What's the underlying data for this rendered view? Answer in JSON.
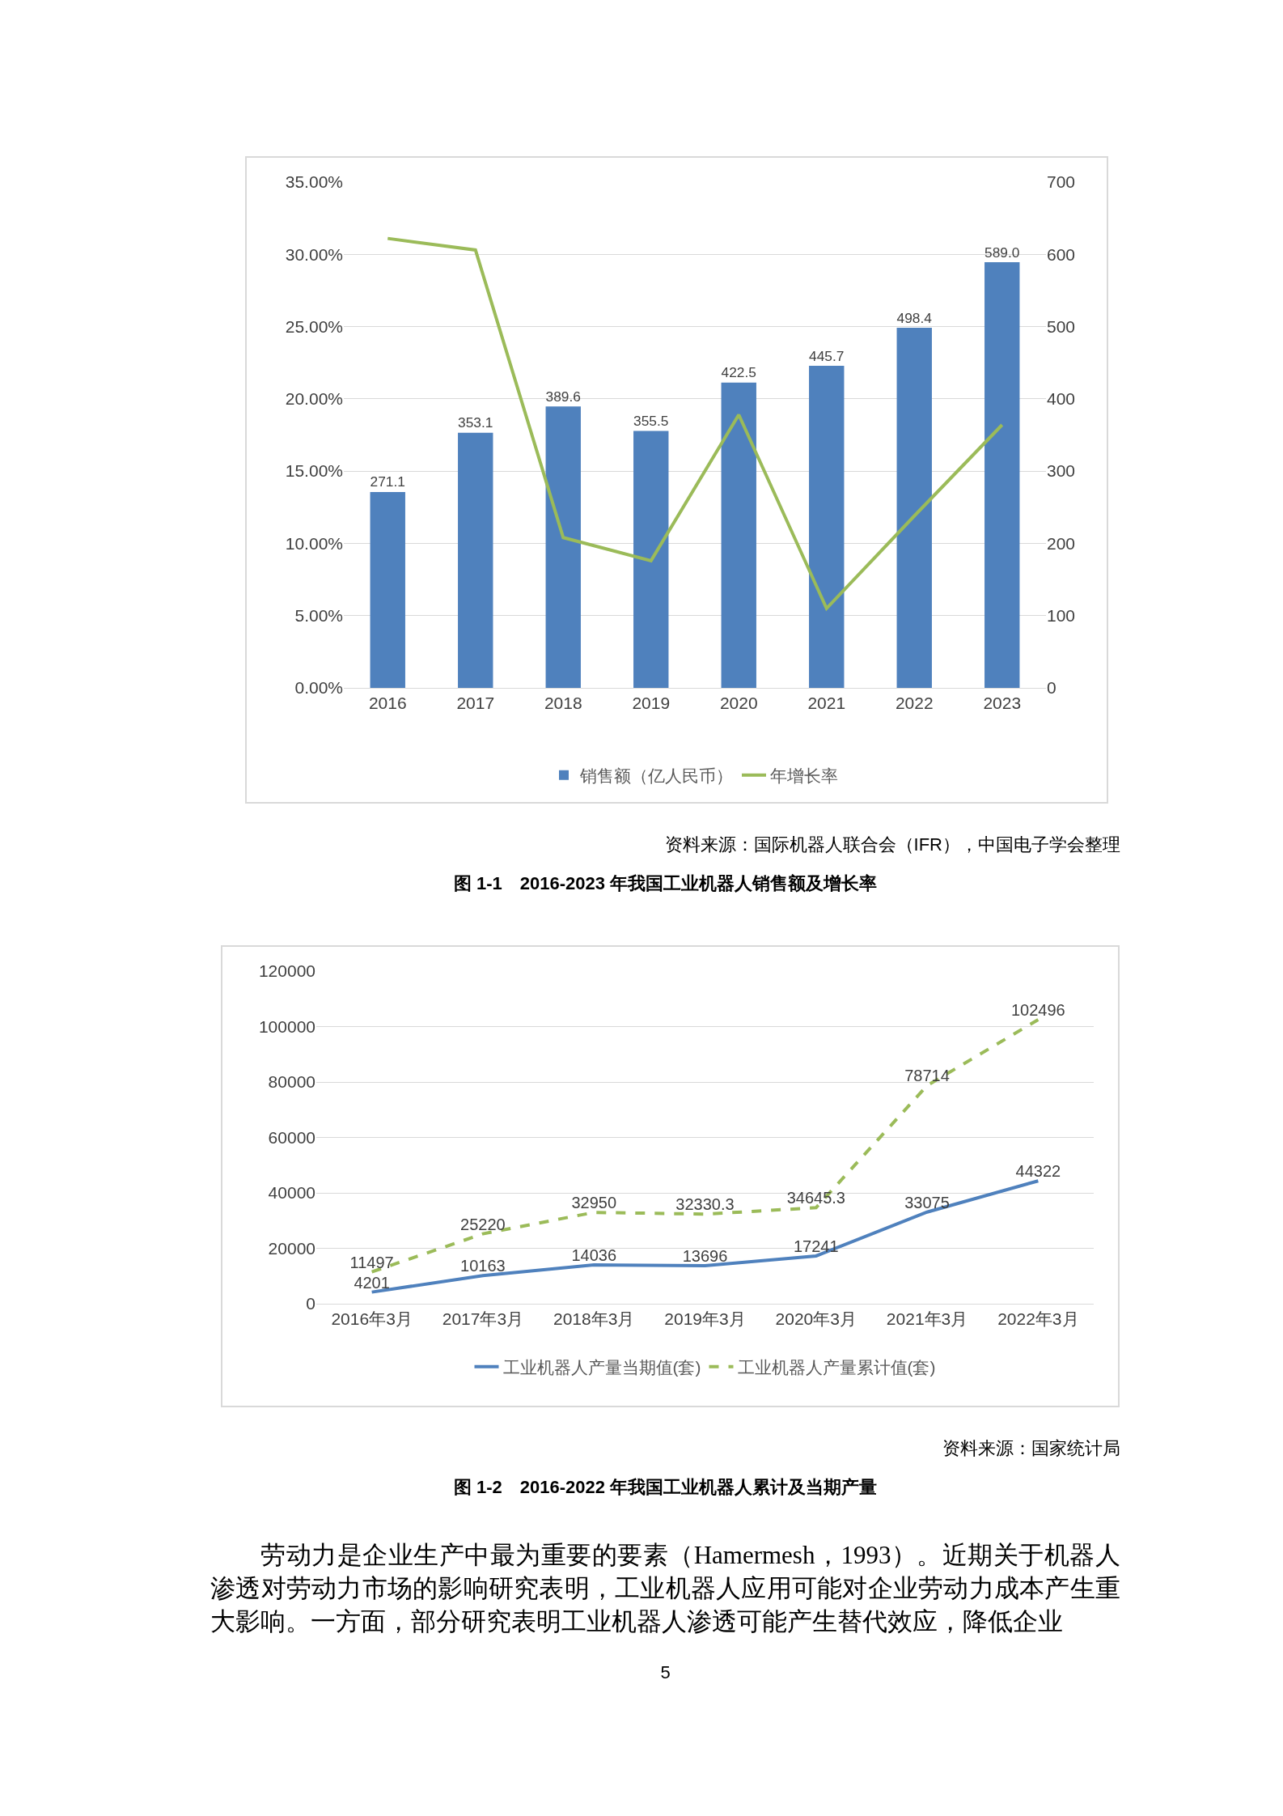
{
  "chart_data": [
    {
      "type": "bar",
      "title": "图 1-1　2016-2023 年我国工业机器人销售额及增长率",
      "categories": [
        "2016",
        "2017",
        "2018",
        "2019",
        "2020",
        "2021",
        "2022",
        "2023"
      ],
      "series": [
        {
          "name": "销售额（亿人民币）",
          "type": "bar",
          "axis": "y2",
          "color": "#4f81bd",
          "values": [
            271.1,
            353.1,
            389.6,
            355.5,
            422.5,
            445.7,
            498.4,
            589.0
          ],
          "value_labels": [
            "271.1",
            "353.1",
            "389.6",
            "355.5",
            "422.5",
            "445.7",
            "498.4",
            "589.0"
          ]
        },
        {
          "name": "年增长率",
          "type": "line",
          "color": "#9bbb59",
          "values": [
            31.1,
            30.3,
            10.4,
            8.8,
            18.9,
            5.5,
            11.9,
            18.2
          ]
        }
      ],
      "ylim": [
        0,
        35
      ],
      "yticks": [
        {
          "value": 0,
          "label": "0.00%"
        },
        {
          "value": 5,
          "label": "5.00%"
        },
        {
          "value": 10,
          "label": "10.00%"
        },
        {
          "value": 15,
          "label": "15.00%"
        },
        {
          "value": 20,
          "label": "20.00%"
        },
        {
          "value": 25,
          "label": "25.00%"
        },
        {
          "value": 30,
          "label": "30.00%"
        },
        {
          "value": 35,
          "label": "35.00%"
        }
      ],
      "y2lim": [
        0,
        700
      ],
      "y2ticks": [
        0,
        100,
        200,
        300,
        400,
        500,
        600,
        700
      ],
      "grid": "y",
      "legend": "bottom",
      "annotations": [
        "资料来源：国际机器人联合会（IFR），中国电子学会整理"
      ]
    },
    {
      "type": "line",
      "title": "图 1-2　2016-2022 年我国工业机器人累计及当期产量",
      "categories": [
        "2016年3月",
        "2017年3月",
        "2018年3月",
        "2019年3月",
        "2020年3月",
        "2021年3月",
        "2022年3月"
      ],
      "series": [
        {
          "name": "工业机器人产量当期值(套)",
          "color": "#4f81bd",
          "line_style": "solid",
          "values": [
            4201,
            10163,
            14036,
            13696,
            17241,
            33075,
            44322
          ]
        },
        {
          "name": "工业机器人产量累计值(套)",
          "color": "#9bbb59",
          "line_style": "dashed",
          "values": [
            11497,
            25220,
            32950,
            32330.3,
            34645.3,
            78714,
            102496
          ]
        }
      ],
      "ylim": [
        0,
        120000
      ],
      "yticks": [
        0,
        20000,
        40000,
        60000,
        80000,
        100000,
        120000
      ],
      "grid": "y",
      "legend": "bottom",
      "data_labels": true,
      "annotations": [
        "资料来源：国家统计局",
        "劳动力是企业生产中最为重要的要素（Hamermesh，1993）。近期关于机器人渗透对劳动力市场的影响研究表明，工业机器人应用可能对企业劳动力成本产生重大影响。一方面，部分研究表明工业机器人渗透可能产生替代效应，降低企业",
        "5"
      ]
    }
  ]
}
